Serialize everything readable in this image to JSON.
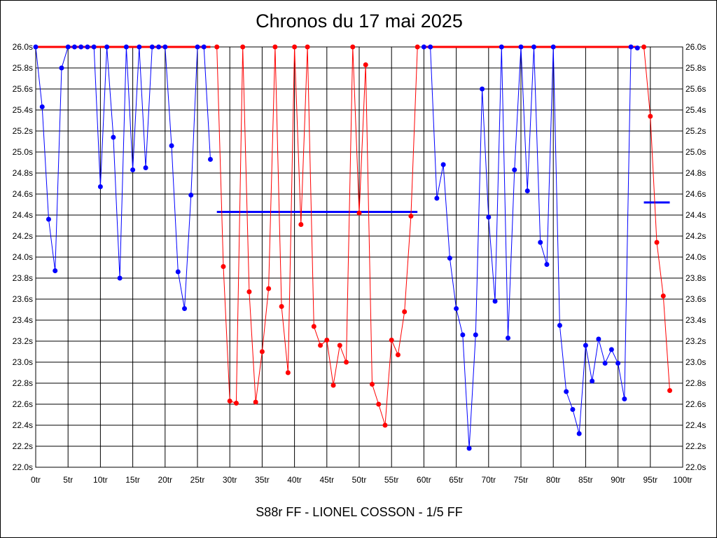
{
  "chart_data": {
    "type": "line",
    "title": "Chronos du 17 mai 2025",
    "xlabel": "S88r FF - LIONEL COSSON - 1/5 FF",
    "ylabel": "",
    "xlim": [
      0,
      100
    ],
    "ylim": [
      22.0,
      26.0
    ],
    "x_ticks": [
      "0tr",
      "5tr",
      "10tr",
      "15tr",
      "20tr",
      "25tr",
      "30tr",
      "35tr",
      "40tr",
      "45tr",
      "50tr",
      "55tr",
      "60tr",
      "65tr",
      "70tr",
      "75tr",
      "80tr",
      "85tr",
      "90tr",
      "95tr",
      "100tr"
    ],
    "y_ticks": [
      "22.0s",
      "22.2s",
      "22.4s",
      "22.6s",
      "22.8s",
      "23.0s",
      "23.2s",
      "23.4s",
      "23.6s",
      "23.8s",
      "24.0s",
      "24.2s",
      "24.4s",
      "24.6s",
      "24.8s",
      "25.0s",
      "25.2s",
      "25.4s",
      "25.6s",
      "25.8s",
      "26.0s"
    ],
    "grid": true,
    "colors": {
      "blue": "#0000ff",
      "red": "#ff0000",
      "grid": "#000000"
    },
    "series": [
      {
        "color": "#0000ff",
        "points": [
          [
            0,
            26.0
          ],
          [
            1,
            25.43
          ],
          [
            2,
            24.36
          ],
          [
            3,
            23.87
          ],
          [
            4,
            25.8
          ],
          [
            5,
            26.0
          ],
          [
            6,
            26.0
          ],
          [
            7,
            26.0
          ],
          [
            8,
            26.0
          ],
          [
            9,
            26.0
          ],
          [
            10,
            24.67
          ],
          [
            11,
            26.0
          ],
          [
            12,
            25.14
          ],
          [
            13,
            23.8
          ],
          [
            14,
            26.0
          ],
          [
            15,
            24.83
          ],
          [
            16,
            26.0
          ],
          [
            17,
            24.85
          ],
          [
            18,
            26.0
          ],
          [
            19,
            26.0
          ],
          [
            20,
            26.0
          ],
          [
            21,
            25.06
          ],
          [
            22,
            23.86
          ],
          [
            23,
            23.51
          ],
          [
            24,
            24.59
          ],
          [
            25,
            26.0
          ],
          [
            26,
            26.0
          ],
          [
            27,
            24.93
          ]
        ]
      },
      {
        "color": "#ff0000",
        "points": [
          [
            28,
            26.0
          ],
          [
            29,
            23.91
          ],
          [
            30,
            22.63
          ],
          [
            31,
            22.61
          ],
          [
            32,
            26.0
          ],
          [
            33,
            23.67
          ],
          [
            34,
            22.62
          ],
          [
            35,
            23.1
          ],
          [
            36,
            23.7
          ],
          [
            37,
            26.0
          ],
          [
            38,
            23.53
          ],
          [
            39,
            22.9
          ],
          [
            40,
            26.0
          ],
          [
            41,
            24.31
          ],
          [
            42,
            26.0
          ],
          [
            43,
            23.34
          ],
          [
            44,
            23.16
          ],
          [
            45,
            23.21
          ],
          [
            46,
            22.78
          ],
          [
            47,
            23.16
          ],
          [
            48,
            23.0
          ],
          [
            49,
            26.0
          ],
          [
            50,
            24.42
          ],
          [
            51,
            25.83
          ],
          [
            52,
            22.79
          ],
          [
            53,
            22.6
          ],
          [
            54,
            22.4
          ],
          [
            55,
            23.21
          ],
          [
            56,
            23.07
          ],
          [
            57,
            23.48
          ],
          [
            58,
            24.39
          ],
          [
            59,
            26.0
          ]
        ]
      },
      {
        "color": "#0000ff",
        "points": [
          [
            60,
            26.0
          ],
          [
            61,
            26.0
          ],
          [
            62,
            24.56
          ],
          [
            63,
            24.88
          ],
          [
            64,
            23.99
          ],
          [
            65,
            23.51
          ],
          [
            66,
            23.26
          ],
          [
            67,
            22.18
          ],
          [
            68,
            23.26
          ],
          [
            69,
            25.6
          ],
          [
            70,
            24.38
          ],
          [
            71,
            23.58
          ],
          [
            72,
            26.0
          ],
          [
            73,
            23.23
          ],
          [
            74,
            24.83
          ],
          [
            75,
            26.0
          ],
          [
            76,
            24.63
          ],
          [
            77,
            26.0
          ],
          [
            78,
            24.14
          ],
          [
            79,
            23.93
          ],
          [
            80,
            26.0
          ],
          [
            81,
            23.35
          ],
          [
            82,
            22.72
          ],
          [
            83,
            22.55
          ],
          [
            84,
            22.32
          ],
          [
            85,
            23.16
          ],
          [
            86,
            22.82
          ],
          [
            87,
            23.22
          ],
          [
            88,
            22.99
          ],
          [
            89,
            23.12
          ],
          [
            90,
            22.99
          ],
          [
            91,
            22.65
          ],
          [
            92,
            26.0
          ],
          [
            93,
            25.99
          ]
        ]
      },
      {
        "color": "#ff0000",
        "points": [
          [
            94,
            26.0
          ],
          [
            95,
            25.34
          ],
          [
            96,
            24.14
          ],
          [
            97,
            23.63
          ],
          [
            98,
            22.73
          ]
        ]
      }
    ],
    "reference_lines": [
      {
        "color": "#ff0000",
        "x": [
          0,
          27
        ],
        "y": 26.0
      },
      {
        "color": "#0000ff",
        "x": [
          28,
          59
        ],
        "y": 24.43
      },
      {
        "color": "#ff0000",
        "x": [
          60,
          93
        ],
        "y": 26.0
      },
      {
        "color": "#0000ff",
        "x": [
          94,
          98
        ],
        "y": 24.52
      }
    ]
  }
}
